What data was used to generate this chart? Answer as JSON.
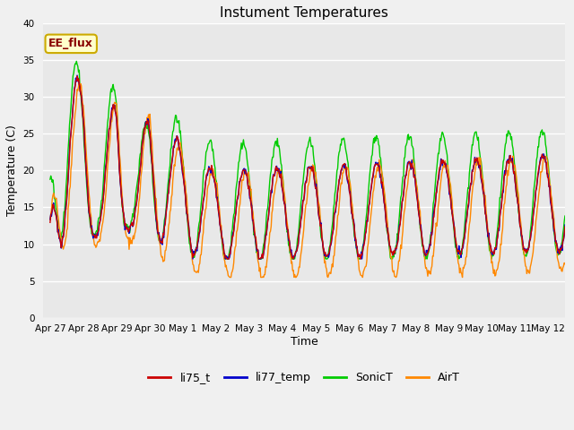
{
  "title": "Instument Temperatures",
  "xlabel": "Time",
  "ylabel": "Temperature (C)",
  "ylim": [
    0,
    40
  ],
  "yticks": [
    0,
    5,
    10,
    15,
    20,
    25,
    30,
    35,
    40
  ],
  "colors": {
    "li75_t": "#cc0000",
    "li77_temp": "#0000cc",
    "SonicT": "#00cc00",
    "AirT": "#ff8800"
  },
  "plot_bg": "#e8e8e8",
  "fig_bg": "#f0f0f0",
  "annotation_text": "EE_flux",
  "annotation_color": "#880000",
  "annotation_bg": "#ffffcc",
  "annotation_edge": "#ccaa00",
  "tick_label_fontsize": 7.5,
  "title_fontsize": 11,
  "axis_label_fontsize": 9,
  "legend_fontsize": 9
}
